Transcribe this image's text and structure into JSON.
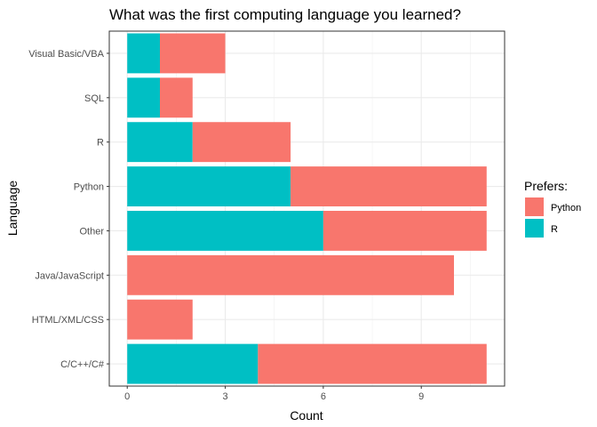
{
  "chart_data": {
    "type": "bar",
    "orientation": "horizontal",
    "stacked": true,
    "title": "What was the first computing language you learned?",
    "xlabel": "Count",
    "ylabel": "Language",
    "categories": [
      "C/C++/C#",
      "HTML/XML/CSS",
      "Java/JavaScript",
      "Other",
      "Python",
      "R",
      "SQL",
      "Visual Basic/VBA"
    ],
    "series": [
      {
        "name": "R",
        "values": [
          4,
          0,
          0,
          6,
          5,
          2,
          1,
          1
        ]
      },
      {
        "name": "Python",
        "values": [
          7,
          2,
          10,
          5,
          6,
          3,
          1,
          2
        ]
      }
    ],
    "xlim": [
      -0.55,
      11.55
    ],
    "xticks": [
      0,
      3,
      6,
      9
    ],
    "grid": true,
    "legend": {
      "title": "Prefers:",
      "placement": "right",
      "entries": [
        "Python",
        "R"
      ]
    },
    "colors": {
      "Python": "#F8766D",
      "R": "#00BFC4"
    }
  }
}
